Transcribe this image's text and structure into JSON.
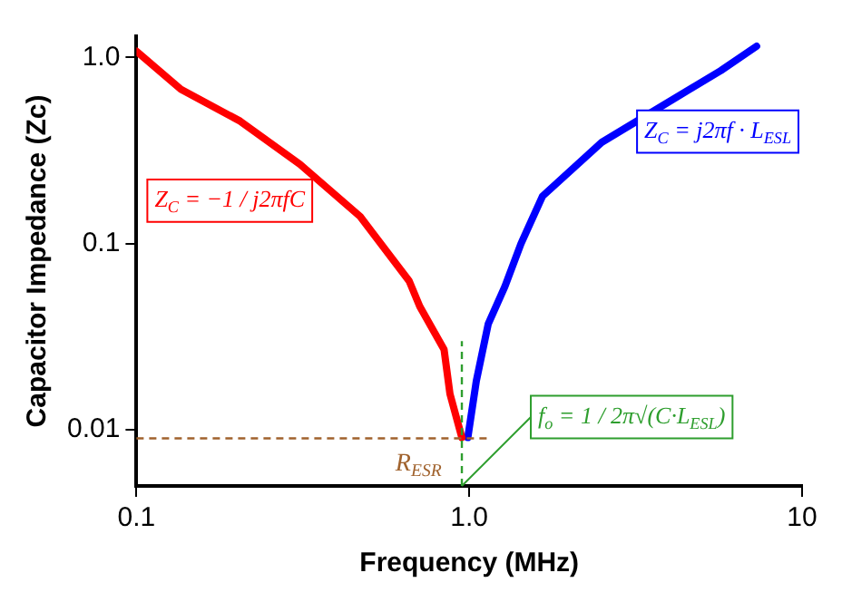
{
  "chart_data": {
    "type": "line",
    "xlabel": "Frequency (MHz)",
    "ylabel": "Capacitor Impedance (Zc)",
    "log": "xy",
    "grid": false,
    "legend": false,
    "marker": "none",
    "line_style": "solid",
    "xlim": [
      0.1,
      10
    ],
    "xticks": [
      0.1,
      {
        "value": 1,
        "label": "1.0"
      },
      10
    ],
    "ylim": [
      0.005,
      1.3
    ],
    "yticks": [
      {
        "value": 1,
        "label": "1.0"
      },
      0.1,
      0.01
    ],
    "series": [
      {
        "color": "#ff0000",
        "x": [
          0.1,
          0.136,
          0.205,
          0.31,
          0.47,
          0.66,
          0.71,
          0.84,
          0.875,
          0.95
        ],
        "values": [
          1.08,
          0.675,
          0.455,
          0.267,
          0.14,
          0.063,
          0.046,
          0.027,
          0.0156,
          0.0091
        ]
      },
      {
        "color": "#0000ff",
        "x": [
          0.99,
          1.05,
          1.14,
          1.28,
          1.43,
          1.66,
          2.5,
          3.8,
          5.7,
          7.3
        ],
        "values": [
          0.0091,
          0.0183,
          0.037,
          0.059,
          0.1,
          0.18,
          0.35,
          0.55,
          0.85,
          1.15
        ]
      }
    ],
    "ref_lines": [
      {
        "axis": "y",
        "value": 0.009,
        "label": "R$_{ESR}$",
        "color": "#a0622d",
        "line_style": "dashed"
      },
      {
        "axis": "x",
        "value": 0.95,
        "label": "f$_{o}$ = 1 / 2π√(C·L$_{ESL}$)",
        "color": "#2e9e2e",
        "line_style": "dashed"
      }
    ],
    "annotations": [
      "Z$_{C}$ = −1 / j2πfC",
      "Z$_{C}$ = j2πf · L$_{ESL}$"
    ]
  }
}
